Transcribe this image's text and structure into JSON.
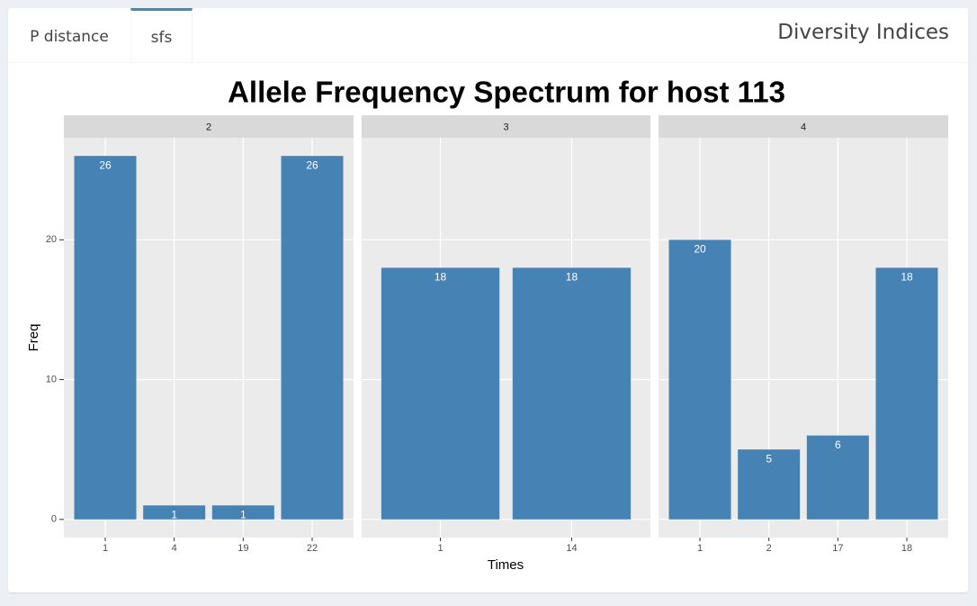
{
  "tabs": [
    "P distance",
    "sfs"
  ],
  "box_title": "Diversity Indices",
  "chart_data": {
    "type": "bar",
    "title": "Allele Frequency Spectrum for host 113",
    "x_label": "Times",
    "y_label": "Freq",
    "color": "#4682b4",
    "ylim": [
      -1.3,
      27.3
    ],
    "yticks": [
      0,
      10,
      20
    ],
    "grid": true,
    "facets": [
      {
        "label": "2",
        "categories": [
          "1",
          "4",
          "19",
          "22"
        ],
        "values": [
          26,
          1,
          1,
          26
        ]
      },
      {
        "label": "3",
        "categories": [
          "1",
          "14"
        ],
        "values": [
          18,
          18
        ]
      },
      {
        "label": "4",
        "categories": [
          "1",
          "2",
          "17",
          "18"
        ],
        "values": [
          20,
          5,
          6,
          18
        ]
      }
    ]
  }
}
